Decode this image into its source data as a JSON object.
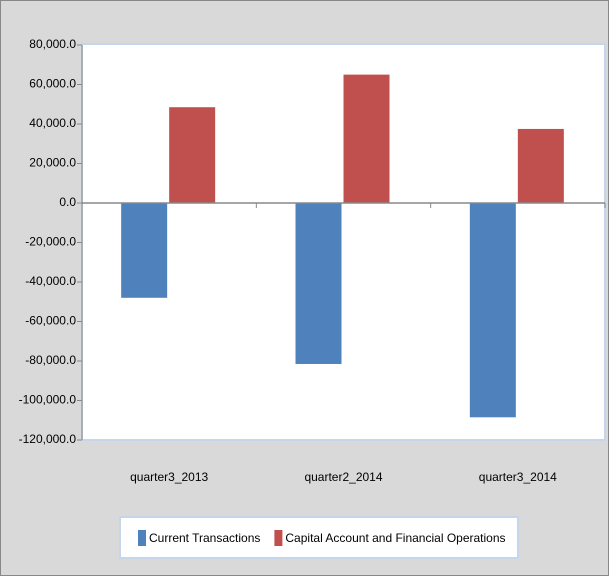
{
  "chart_data": {
    "type": "bar",
    "categories": [
      "quarter3_2013",
      "quarter2_2014",
      "quarter3_2014"
    ],
    "series": [
      {
        "name": "Current Transactions",
        "color": "#4f81bd",
        "values": [
          -48000,
          -81500,
          -108500
        ]
      },
      {
        "name": "Capital Account and Financial Operations",
        "color": "#c0504d",
        "values": [
          48500,
          65000,
          37500
        ]
      }
    ],
    "ylim": [
      -120000,
      80000
    ],
    "yticks": [
      {
        "value": -120000,
        "label": "-120,000.0"
      },
      {
        "value": -100000,
        "label": "-100,000.0"
      },
      {
        "value": -80000,
        "label": "-80,000.0"
      },
      {
        "value": -60000,
        "label": "-60,000.0"
      },
      {
        "value": -40000,
        "label": "-40,000.0"
      },
      {
        "value": -20000,
        "label": "-20,000.0"
      },
      {
        "value": 0,
        "label": "0.0"
      },
      {
        "value": 20000,
        "label": "20,000.0"
      },
      {
        "value": 40000,
        "label": "40,000.0"
      },
      {
        "value": 60000,
        "label": "60,000.0"
      },
      {
        "value": 80000,
        "label": "80,000.0"
      }
    ],
    "grid": false,
    "legend": "bottom"
  }
}
